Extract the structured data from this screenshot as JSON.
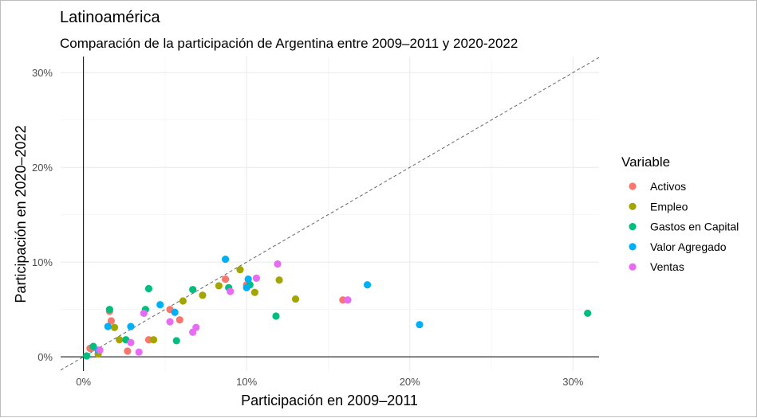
{
  "chart_data": {
    "type": "scatter",
    "title": "Latinoamérica",
    "subtitle": "Comparación de la participación de Argentina entre 2009–2011 y 2020-2022",
    "xlabel": "Participación en 2009–2011",
    "ylabel": "Participación en 2020–2022",
    "xlim": [
      -1.4,
      31.6
    ],
    "ylim": [
      -1.5,
      31.7
    ],
    "x_ticks": [
      {
        "value": 0,
        "label": "0%"
      },
      {
        "value": 10,
        "label": "10%"
      },
      {
        "value": 20,
        "label": "20%"
      },
      {
        "value": 30,
        "label": "30%"
      }
    ],
    "y_ticks": [
      {
        "value": 0,
        "label": "0%"
      },
      {
        "value": 10,
        "label": "10%"
      },
      {
        "value": 20,
        "label": "20%"
      },
      {
        "value": 30,
        "label": "30%"
      }
    ],
    "grid": true,
    "reference_line": "y = x (dashed)",
    "legend": {
      "title": "Variable",
      "placement": "right"
    },
    "series": [
      {
        "name": "Activos",
        "color": "#F8766D",
        "points": [
          [
            0.4,
            0.9
          ],
          [
            0.5,
            0.9
          ],
          [
            1.6,
            4.8
          ],
          [
            1.7,
            3.8
          ],
          [
            2.7,
            0.6
          ],
          [
            4.0,
            1.8
          ],
          [
            5.3,
            5.0
          ],
          [
            5.9,
            3.9
          ],
          [
            8.7,
            8.2
          ],
          [
            10.0,
            7.6
          ],
          [
            15.9,
            6.0
          ]
        ]
      },
      {
        "name": "Empleo",
        "color": "#A3A500",
        "points": [
          [
            0.9,
            0.3
          ],
          [
            1.9,
            3.1
          ],
          [
            2.2,
            1.8
          ],
          [
            4.3,
            1.8
          ],
          [
            6.1,
            5.9
          ],
          [
            7.3,
            6.5
          ],
          [
            8.3,
            7.5
          ],
          [
            9.6,
            9.2
          ],
          [
            10.5,
            6.8
          ],
          [
            12.0,
            8.1
          ],
          [
            13.0,
            6.1
          ]
        ]
      },
      {
        "name": "Gastos en Capital",
        "color": "#00BF7D",
        "points": [
          [
            0.2,
            0.1
          ],
          [
            0.6,
            1.1
          ],
          [
            1.6,
            5.0
          ],
          [
            2.6,
            1.8
          ],
          [
            3.8,
            5.0
          ],
          [
            4.0,
            7.2
          ],
          [
            5.7,
            1.7
          ],
          [
            6.7,
            7.1
          ],
          [
            8.9,
            7.3
          ],
          [
            10.2,
            7.6
          ],
          [
            11.8,
            4.3
          ],
          [
            30.9,
            4.6
          ]
        ]
      },
      {
        "name": "Valor Agregado",
        "color": "#00B0F6",
        "points": [
          [
            0.9,
            0.7
          ],
          [
            1.5,
            3.2
          ],
          [
            2.9,
            3.2
          ],
          [
            4.7,
            5.5
          ],
          [
            5.6,
            4.7
          ],
          [
            8.7,
            10.3
          ],
          [
            10.0,
            7.3
          ],
          [
            10.1,
            8.2
          ],
          [
            17.4,
            7.6
          ],
          [
            20.6,
            3.4
          ]
        ]
      },
      {
        "name": "Ventas",
        "color": "#E76BF3",
        "points": [
          [
            1.0,
            0.7
          ],
          [
            2.9,
            1.5
          ],
          [
            3.4,
            0.5
          ],
          [
            3.7,
            4.6
          ],
          [
            5.3,
            3.7
          ],
          [
            6.7,
            2.6
          ],
          [
            6.9,
            3.1
          ],
          [
            9.0,
            6.9
          ],
          [
            10.6,
            8.3
          ],
          [
            11.9,
            9.8
          ],
          [
            16.2,
            6.0
          ]
        ]
      }
    ]
  }
}
